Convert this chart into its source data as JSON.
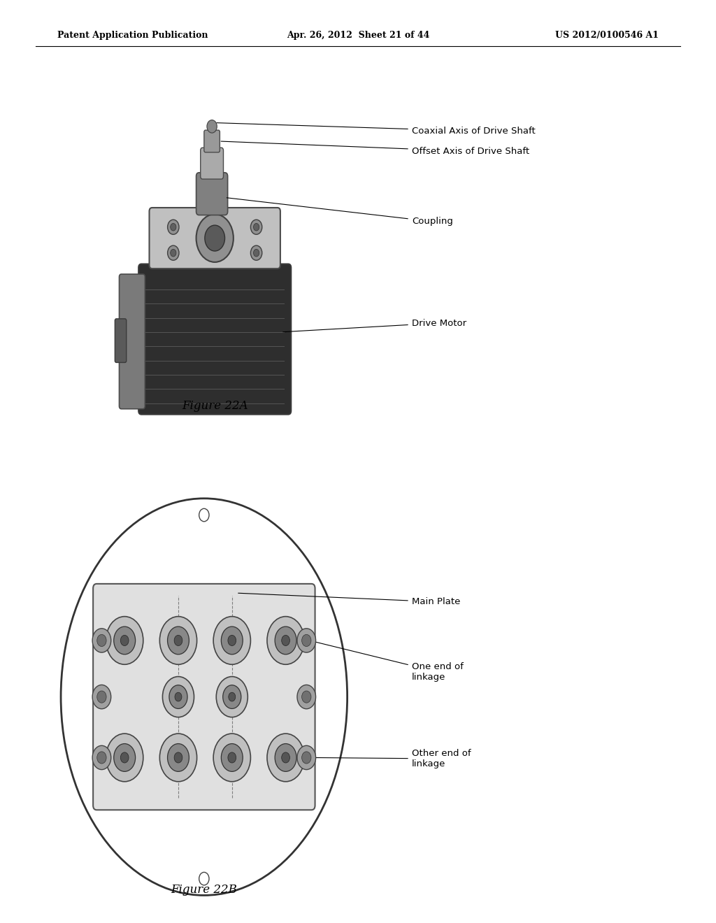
{
  "background_color": "#ffffff",
  "header_left": "Patent Application Publication",
  "header_center": "Apr. 26, 2012  Sheet 21 of 44",
  "header_right": "US 2012/0100546 A1",
  "fig22a_caption": "Figure 22A",
  "fig22b_caption": "Figure 22B",
  "label_coaxial": "Coaxial Axis of Drive Shaft",
  "label_offset": "Offset Axis of Drive Shaft",
  "label_coupling": "Coupling",
  "label_motor": "Drive Motor",
  "label_main_plate": "Main Plate",
  "label_one_end": "One end of\nlinkage",
  "label_other_end": "Other end of\nlinkage"
}
